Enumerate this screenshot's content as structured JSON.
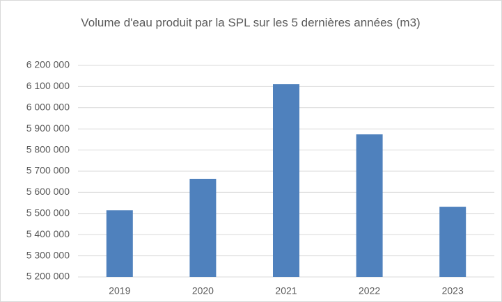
{
  "chart_data": {
    "type": "bar",
    "title": "Volume d'eau produit par la SPL sur les 5 dernières années (m3)",
    "categories": [
      "2019",
      "2020",
      "2021",
      "2022",
      "2023"
    ],
    "values": [
      5515000,
      5664000,
      6111000,
      5874000,
      5532000
    ],
    "color": "#4f81bd",
    "ylim": [
      5200000,
      6200000
    ],
    "yticks": [
      {
        "value": 5200000,
        "label": "5 200 000"
      },
      {
        "value": 5300000,
        "label": "5 300 000"
      },
      {
        "value": 5400000,
        "label": "5 400 000"
      },
      {
        "value": 5500000,
        "label": "5 500 000"
      },
      {
        "value": 5600000,
        "label": "5 600 000"
      },
      {
        "value": 5700000,
        "label": "5 700 000"
      },
      {
        "value": 5800000,
        "label": "5 800 000"
      },
      {
        "value": 5900000,
        "label": "5 900 000"
      },
      {
        "value": 6000000,
        "label": "6 000 000"
      },
      {
        "value": 6100000,
        "label": "6 100 000"
      },
      {
        "value": 6200000,
        "label": "6 200 000"
      }
    ],
    "grid": true
  }
}
